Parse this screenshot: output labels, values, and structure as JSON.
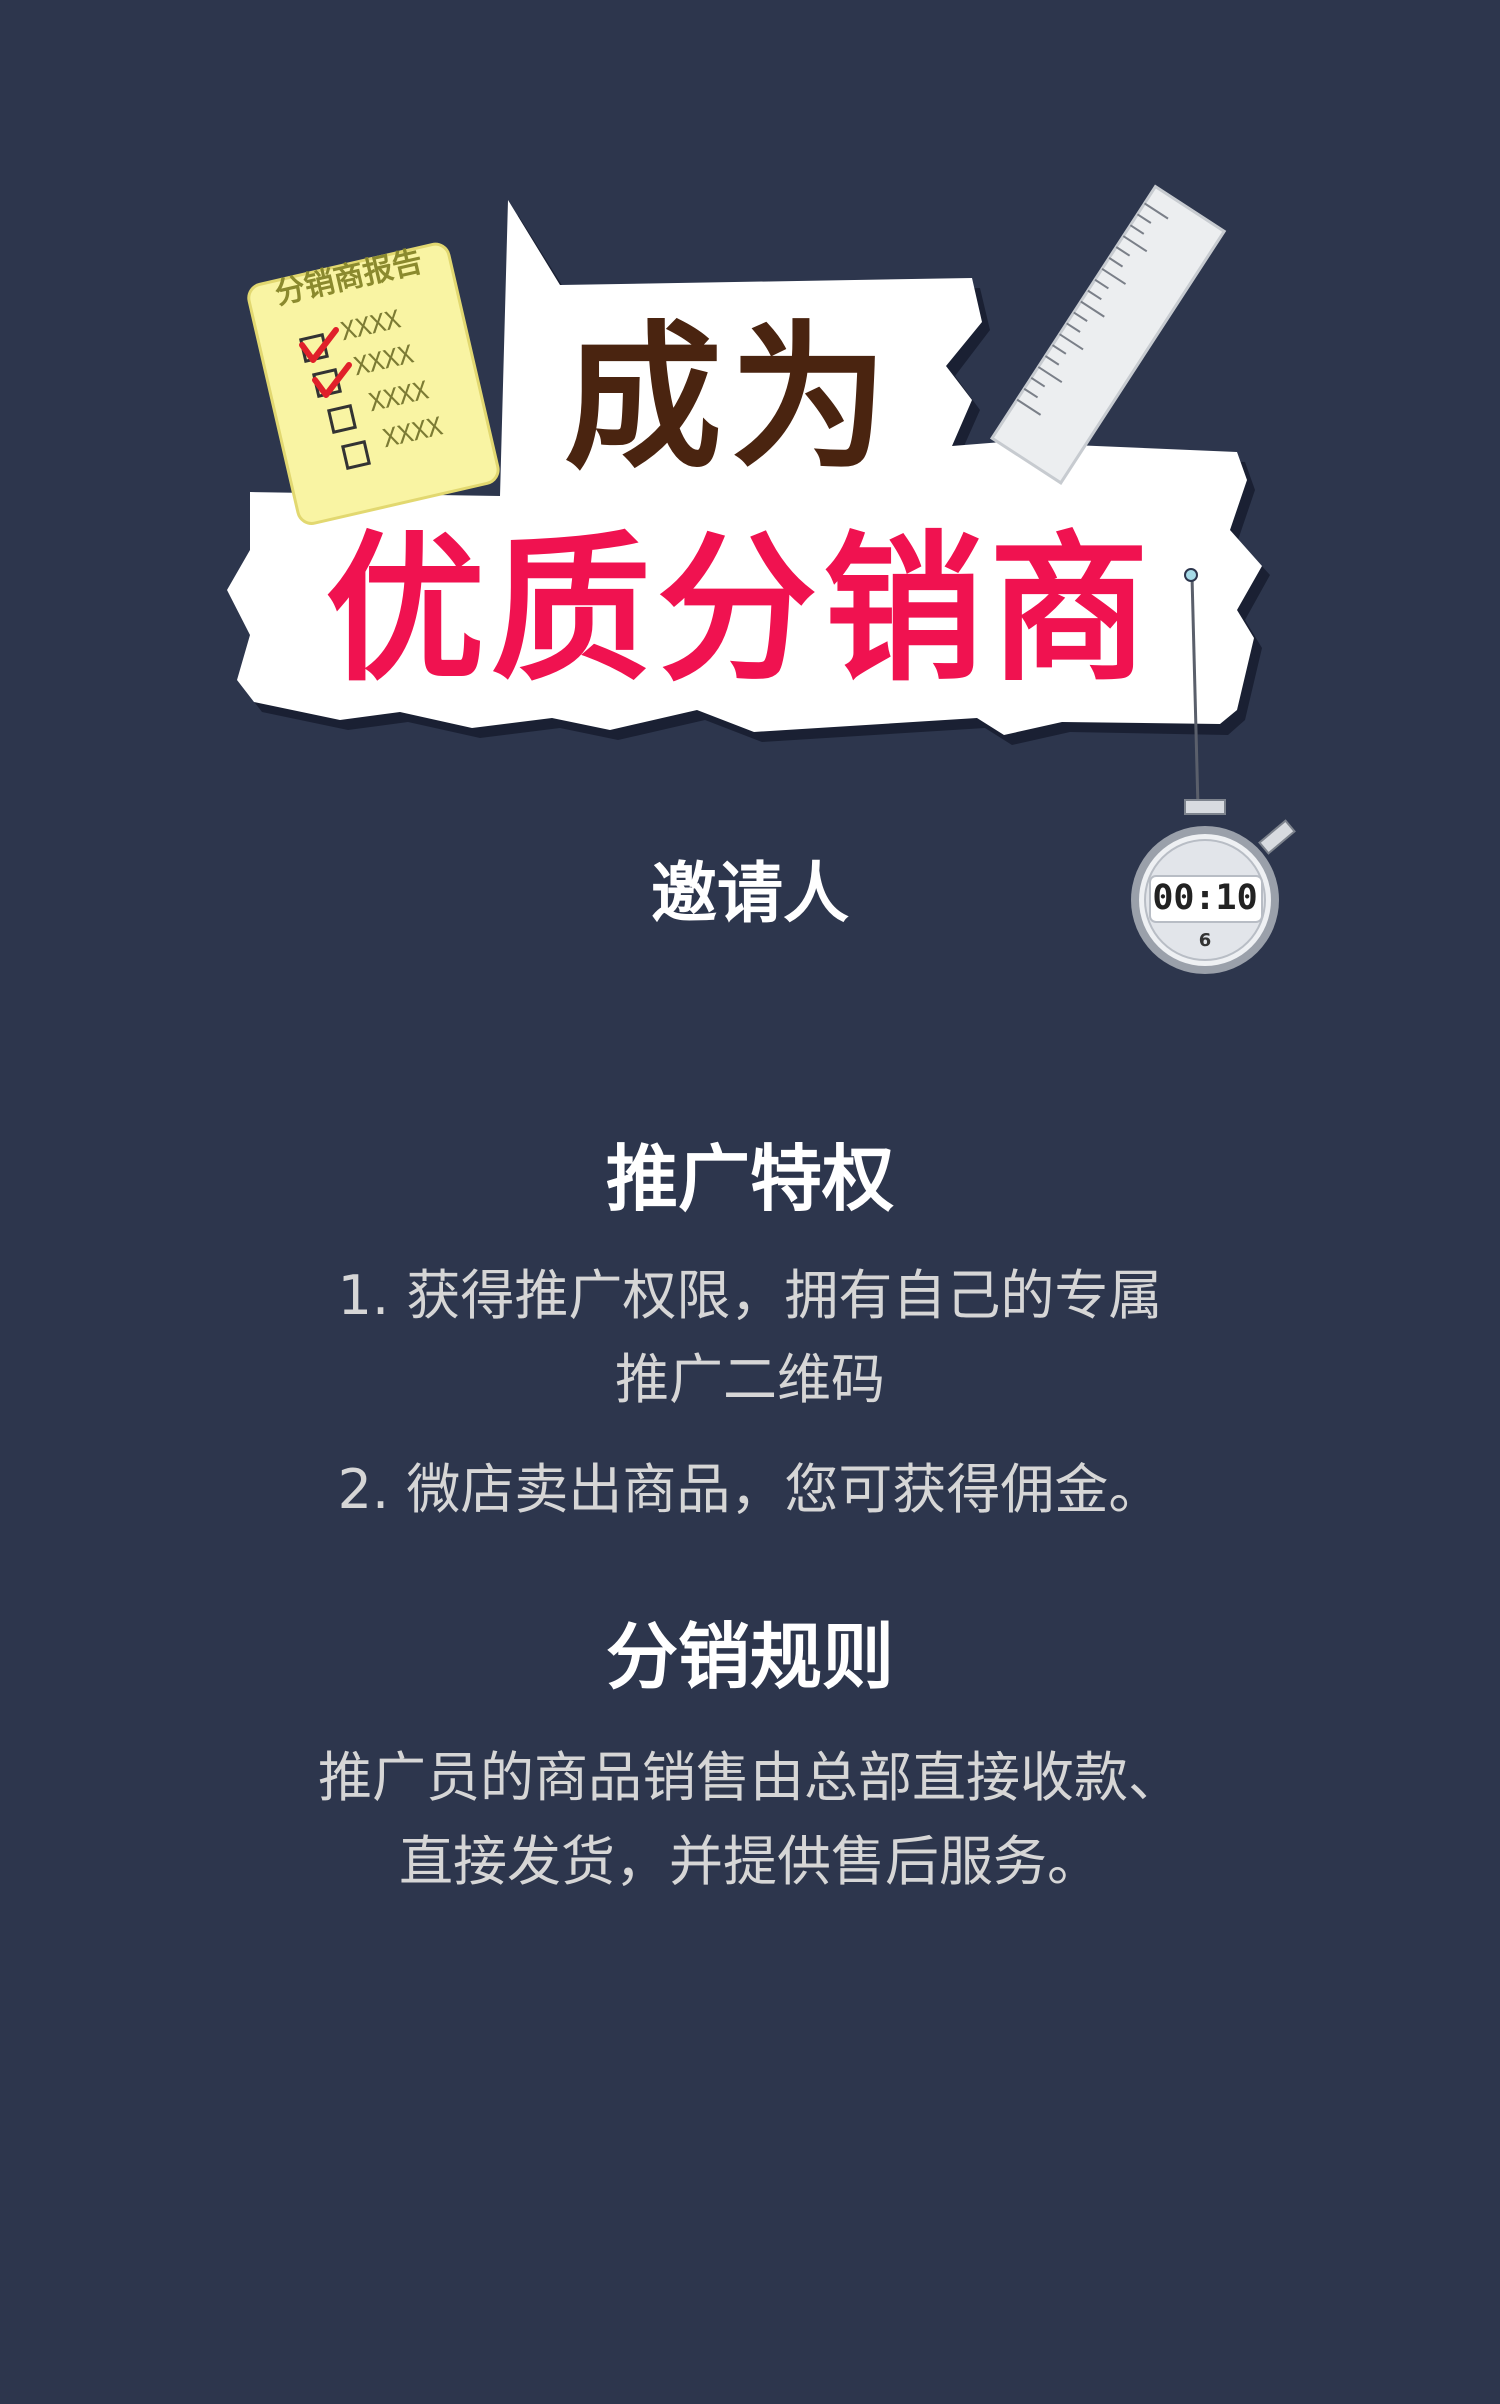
{
  "banner": {
    "headline_line1": "成为",
    "headline_line2": "优质分销商",
    "paper": {
      "title": "分销商报告",
      "items": [
        "XXXX",
        "XXXX",
        "XXXX",
        "XXXX"
      ]
    },
    "timer": {
      "display": "00:10",
      "sub": "6"
    },
    "colors": {
      "background": "#2d364d",
      "headline_line1": "#4a2410",
      "headline_line2": "#f01250"
    }
  },
  "inviter_label": "邀请人",
  "privileges": {
    "title": "推广特权",
    "lines": [
      "1. 获得推广权限，拥有自己的专属",
      "推广二维码",
      "2. 微店卖出商品，您可获得佣金。"
    ]
  },
  "rules": {
    "title": "分销规则",
    "lines": [
      "推广员的商品销售由总部直接收款、",
      "直接发货，并提供售后服务。"
    ]
  }
}
